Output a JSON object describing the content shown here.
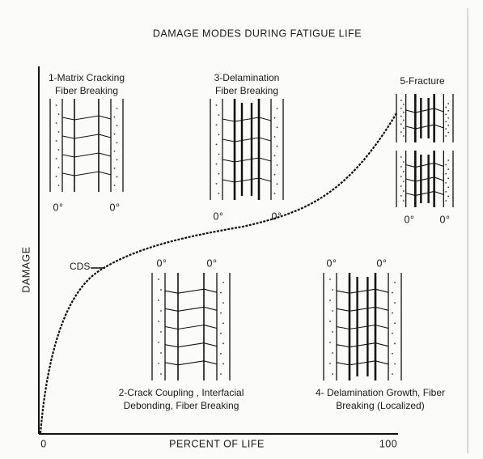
{
  "figure": {
    "title": "DAMAGE MODES DURING FATIGUE LIFE",
    "y_axis_label": "DAMAGE",
    "x_axis_label": "PERCENT OF LIFE",
    "x_start_label": "0",
    "x_end_label": "100",
    "cds_label": "CDS",
    "stages": [
      {
        "lines": [
          "1-Matrix Cracking",
          "Fiber Breaking"
        ],
        "ply_labels": [
          "0°",
          "0°"
        ]
      },
      {
        "lines": [
          "2-Crack Coupling , Interfacial",
          "Debonding, Fiber Breaking"
        ],
        "ply_labels": [
          "0°",
          "0°"
        ]
      },
      {
        "lines": [
          "3-Delamination",
          "Fiber Breaking"
        ],
        "ply_labels": [
          "0°",
          "0°"
        ]
      },
      {
        "lines": [
          "4- Delamination Growth, Fiber",
          "Breaking (Localized)"
        ],
        "ply_labels": [
          "0°",
          "0°"
        ]
      },
      {
        "lines": [
          "5-Fracture"
        ],
        "ply_labels": [
          "0°",
          "0°"
        ]
      }
    ]
  }
}
